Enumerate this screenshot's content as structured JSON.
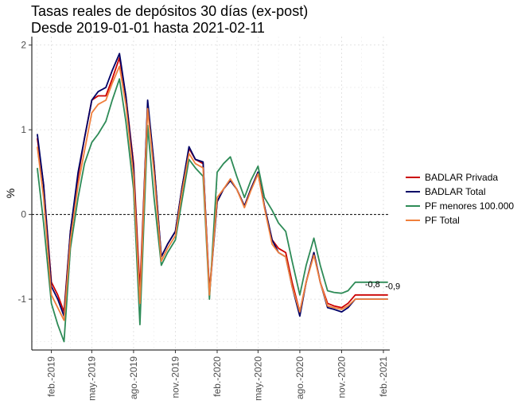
{
  "chart_data": {
    "type": "line",
    "title": "Tasas reales de depósitos 30 días (ex-post)",
    "subtitle": "Desde 2019-01-01 hasta 2021-02-11",
    "xlabel": "",
    "ylabel": "%",
    "ylim": [
      -1.6,
      2.1
    ],
    "y_ticks": [
      -1,
      0,
      1,
      2
    ],
    "x_ticks": [
      {
        "date": "2019-02-01",
        "label": "feb.-2019"
      },
      {
        "date": "2019-05-01",
        "label": "may.-2019"
      },
      {
        "date": "2019-08-01",
        "label": "ago.-2019"
      },
      {
        "date": "2019-11-01",
        "label": "nov.-2019"
      },
      {
        "date": "2020-02-01",
        "label": "feb.-2020"
      },
      {
        "date": "2020-05-01",
        "label": "may.-2020"
      },
      {
        "date": "2020-08-01",
        "label": "ago.-2020"
      },
      {
        "date": "2020-11-01",
        "label": "nov.-2020"
      },
      {
        "date": "2021-02-01",
        "label": "feb.-2021"
      }
    ],
    "xlim": [
      "2018-12-20",
      "2021-02-15"
    ],
    "reference_line": 0,
    "grid": true,
    "legend_position": "right",
    "x": [
      "2019-01-01",
      "2019-01-15",
      "2019-02-01",
      "2019-02-15",
      "2019-03-01",
      "2019-03-15",
      "2019-04-01",
      "2019-04-15",
      "2019-05-01",
      "2019-05-15",
      "2019-06-01",
      "2019-06-15",
      "2019-07-01",
      "2019-07-15",
      "2019-08-01",
      "2019-08-15",
      "2019-09-01",
      "2019-09-15",
      "2019-10-01",
      "2019-10-15",
      "2019-11-01",
      "2019-11-15",
      "2019-12-01",
      "2019-12-15",
      "2020-01-01",
      "2020-01-15",
      "2020-02-01",
      "2020-02-15",
      "2020-03-01",
      "2020-03-15",
      "2020-04-01",
      "2020-04-15",
      "2020-05-01",
      "2020-05-15",
      "2020-06-01",
      "2020-06-15",
      "2020-07-01",
      "2020-07-15",
      "2020-08-01",
      "2020-08-15",
      "2020-09-01",
      "2020-09-15",
      "2020-10-01",
      "2020-10-15",
      "2020-11-01",
      "2020-11-15",
      "2020-12-01",
      "2020-12-15",
      "2021-01-01",
      "2021-01-15",
      "2021-02-01",
      "2021-02-11"
    ],
    "series": [
      {
        "name": "BADLAR Privada",
        "color": "#cc0000",
        "values": [
          0.9,
          0.35,
          -0.8,
          -0.95,
          -1.15,
          -0.2,
          0.45,
          0.9,
          1.35,
          1.4,
          1.4,
          1.6,
          1.85,
          1.4,
          0.6,
          -0.9,
          1.3,
          0.6,
          -0.5,
          -0.35,
          -0.2,
          0.3,
          0.78,
          0.65,
          0.6,
          -0.9,
          0.15,
          0.3,
          0.4,
          0.3,
          0.1,
          0.3,
          0.5,
          0.1,
          -0.3,
          -0.4,
          -0.45,
          -0.8,
          -1.15,
          -0.8,
          -0.45,
          -0.8,
          -1.05,
          -1.08,
          -1.1,
          -1.05,
          -0.95,
          -0.95,
          -0.95,
          -0.95,
          -0.95,
          -0.95
        ]
      },
      {
        "name": "BADLAR Total",
        "color": "#000066",
        "values": [
          0.95,
          0.35,
          -0.85,
          -1.0,
          -1.2,
          -0.2,
          0.5,
          0.9,
          1.35,
          1.45,
          1.5,
          1.7,
          1.9,
          1.4,
          0.55,
          -1.05,
          1.35,
          0.6,
          -0.5,
          -0.35,
          -0.2,
          0.3,
          0.8,
          0.65,
          0.62,
          -0.95,
          0.15,
          0.3,
          0.4,
          0.3,
          0.1,
          0.3,
          0.5,
          0.1,
          -0.3,
          -0.45,
          -0.5,
          -0.85,
          -1.2,
          -0.8,
          -0.45,
          -0.8,
          -1.1,
          -1.12,
          -1.15,
          -1.1,
          -1.0,
          -1.0,
          -1.0,
          -1.0,
          -1.0,
          -1.0
        ]
      },
      {
        "name": "PF menores 100.000",
        "color": "#2e8b57",
        "values": [
          0.55,
          -0.1,
          -1.05,
          -1.3,
          -1.5,
          -0.4,
          0.2,
          0.6,
          0.85,
          0.95,
          1.1,
          1.35,
          1.6,
          1.1,
          0.3,
          -1.3,
          1.05,
          0.2,
          -0.6,
          -0.45,
          -0.3,
          0.15,
          0.65,
          0.55,
          0.45,
          -1.0,
          0.5,
          0.6,
          0.68,
          0.45,
          0.2,
          0.4,
          0.57,
          0.2,
          0.05,
          -0.1,
          -0.2,
          -0.55,
          -0.95,
          -0.6,
          -0.28,
          -0.6,
          -0.9,
          -0.92,
          -0.93,
          -0.9,
          -0.8,
          -0.8,
          -0.8,
          -0.8,
          -0.8,
          -0.8
        ]
      },
      {
        "name": "PF Total",
        "color": "#f07f3c",
        "values": [
          0.8,
          0.2,
          -0.95,
          -1.1,
          -1.25,
          -0.3,
          0.35,
          0.75,
          1.2,
          1.3,
          1.35,
          1.55,
          1.75,
          1.3,
          0.45,
          -1.05,
          1.25,
          0.5,
          -0.55,
          -0.4,
          -0.25,
          0.25,
          0.72,
          0.6,
          0.55,
          -0.95,
          0.2,
          0.3,
          0.42,
          0.3,
          0.08,
          0.28,
          0.48,
          0.08,
          -0.35,
          -0.45,
          -0.5,
          -0.85,
          -1.15,
          -0.8,
          -0.48,
          -0.8,
          -1.08,
          -1.1,
          -1.12,
          -1.08,
          -1.0,
          -1.0,
          -1.0,
          -1.0,
          -1.0,
          -1.0
        ]
      }
    ],
    "annotations": [
      {
        "text": "-0,8",
        "x": "2021-01-15",
        "y": -0.8
      },
      {
        "text": "-0,9",
        "x": "2021-02-11",
        "y": -0.9
      }
    ]
  }
}
